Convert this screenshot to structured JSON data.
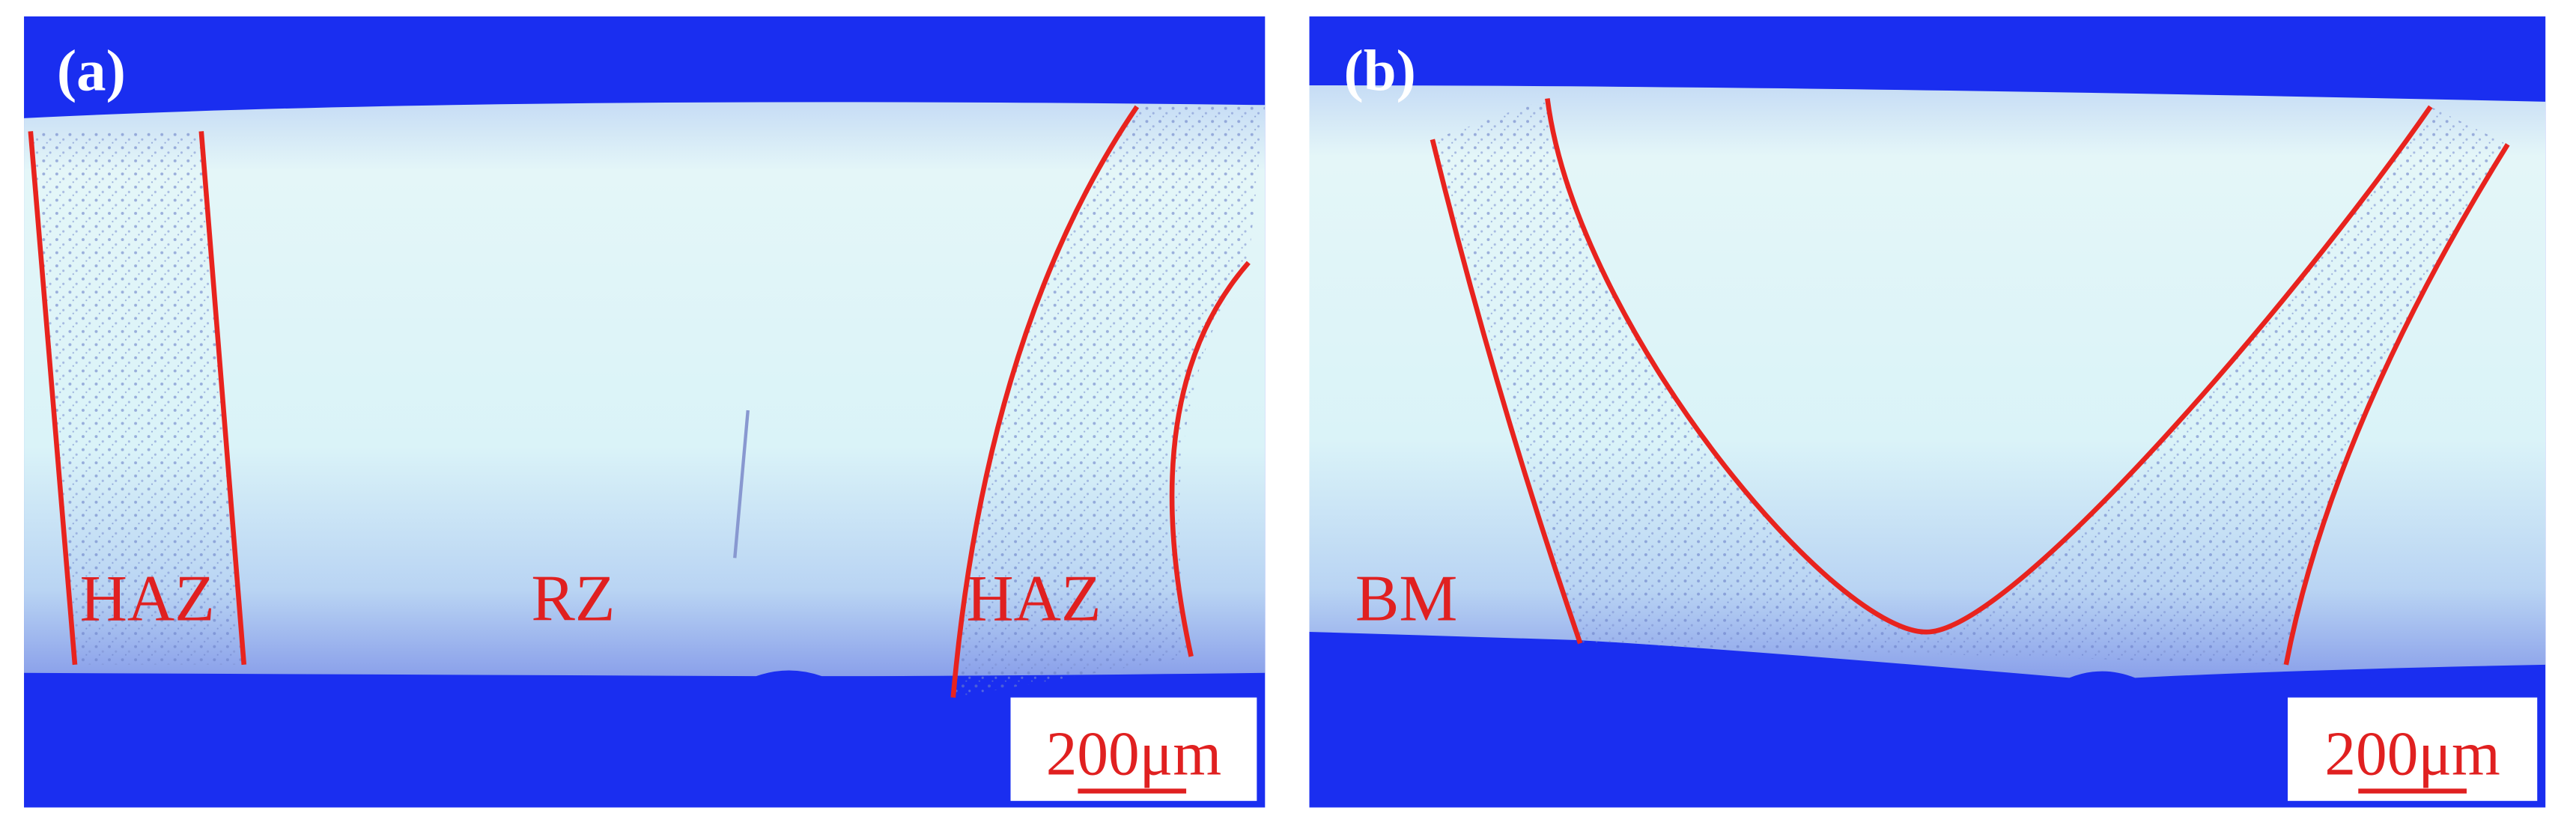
{
  "panels": [
    {
      "label": "(a)",
      "regions": [
        "HAZ",
        "RZ",
        "HAZ"
      ],
      "scale_bar": "200μm"
    },
    {
      "label": "(b)",
      "regions": [
        "BM"
      ],
      "scale_bar": "200μm"
    }
  ]
}
